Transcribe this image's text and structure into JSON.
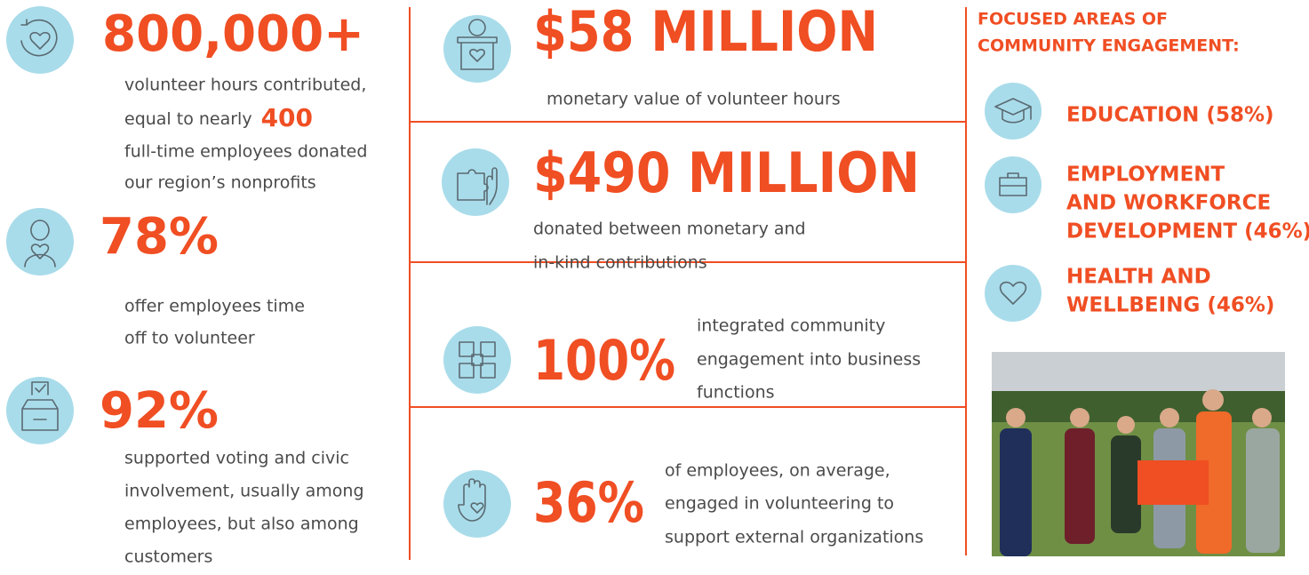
{
  "left": [
    {
      "value": "800,000+",
      "lines": [
        "volunteer hours contributed,",
        "equal to nearly",
        "full-time employees donated",
        "our region’s nonprofits"
      ],
      "highlight": "400"
    },
    {
      "value": "78%",
      "lines": [
        "offer employees time",
        "off to volunteer"
      ]
    },
    {
      "value": "92%",
      "lines": [
        "supported voting and civic",
        "involvement, usually among",
        "employees, but also among",
        "customers"
      ]
    }
  ],
  "middle": [
    {
      "value": "$58 MILLION",
      "lines": [
        "monetary value of volunteer hours"
      ]
    },
    {
      "value": "$490 MILLION",
      "lines": [
        "donated between monetary and",
        "in-kind contributions"
      ]
    },
    {
      "value": "100%",
      "lines": [
        "integrated community",
        "engagement into business",
        "functions"
      ]
    },
    {
      "value": "36%",
      "lines": [
        "of employees, on average,",
        "engaged in volunteering to",
        "support external organizations"
      ]
    }
  ],
  "right": {
    "title": [
      "FOCUSED AREAS OF",
      "COMMUNITY ENGAGEMENT:"
    ],
    "areas": [
      {
        "lines": [
          "EDUCATION (58%)"
        ]
      },
      {
        "lines": [
          "EMPLOYMENT",
          "AND WORKFORCE",
          "DEVELOPMENT (46%)"
        ]
      },
      {
        "lines": [
          "HEALTH AND",
          "WELLBEING (46%)"
        ]
      }
    ]
  }
}
